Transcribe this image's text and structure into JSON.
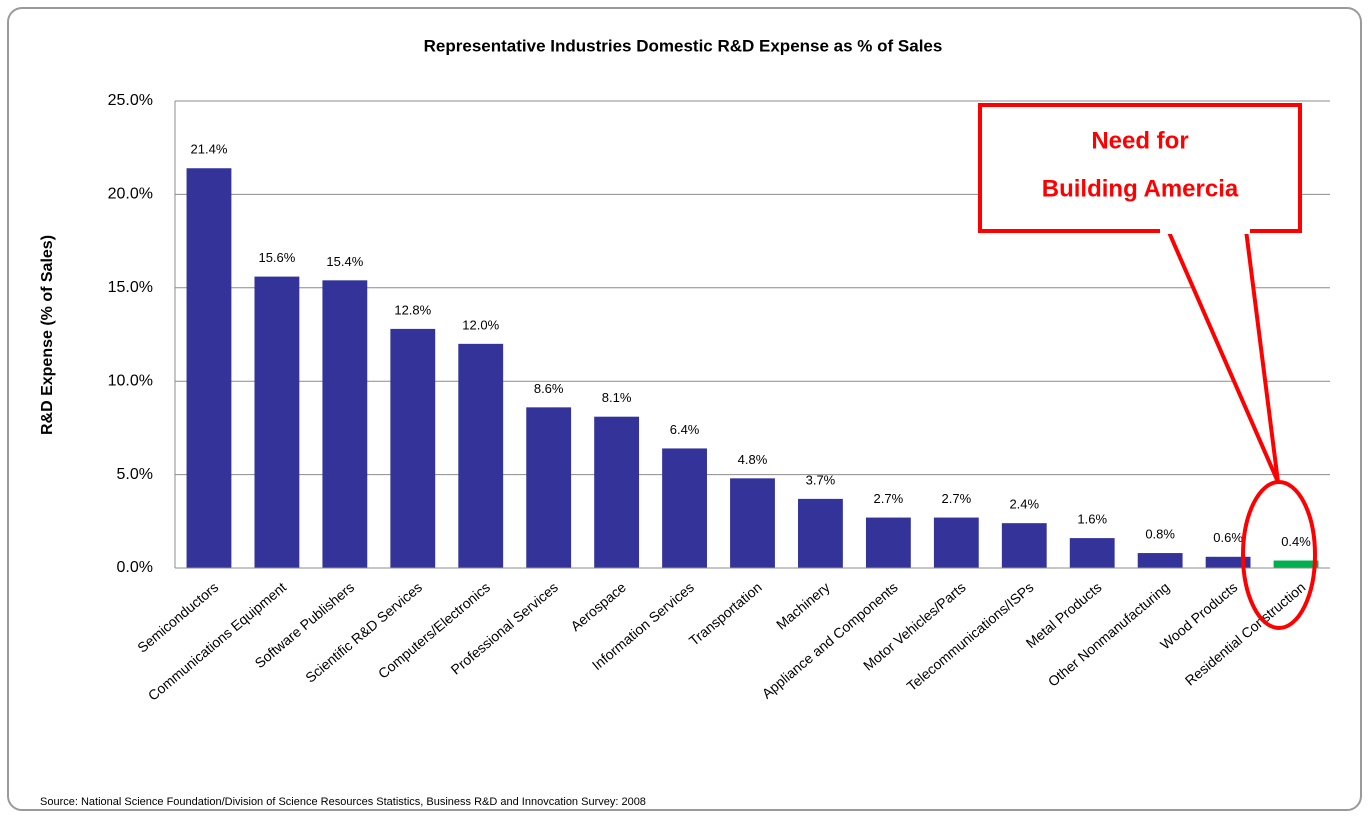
{
  "chart_data": {
    "type": "bar",
    "title": "Representative Industries Domestic R&D Expense as % of Sales",
    "y_label": "R&D Expense (% of Sales)",
    "source": "Source: National Science Foundation/Division of Science Resources Statistics, Business R&D and Innovcation Survey: 2008",
    "annotation": [
      "Need for",
      "Building Amercia"
    ],
    "categories": [
      "Semiconductors",
      "Communications Equipment",
      "Software Publishers",
      "Scientific R&D Services",
      "Computers/Electronics",
      "Professional Services",
      "Aerospace",
      "Information Services",
      "Transportation",
      "Machinery",
      "Appliance and Components",
      "Motor Vehicles/Parts",
      "Telecommunications/ISPs",
      "Metal Products",
      "Other Nonmanufacturing",
      "Wood Products",
      "Residential Construction"
    ],
    "values": [
      21.4,
      15.6,
      15.4,
      12.8,
      12.0,
      8.6,
      8.1,
      6.4,
      4.8,
      3.7,
      2.7,
      2.7,
      2.4,
      1.6,
      0.8,
      0.6,
      0.4
    ],
    "value_labels": [
      "21.4%",
      "15.6%",
      "15.4%",
      "12.8%",
      "12.0%",
      "8.6%",
      "8.1%",
      "6.4%",
      "4.8%",
      "3.7%",
      "2.7%",
      "2.7%",
      "2.4%",
      "1.6%",
      "0.8%",
      "0.6%",
      "0.4%"
    ],
    "colors": [
      "#333399",
      "#333399",
      "#333399",
      "#333399",
      "#333399",
      "#333399",
      "#333399",
      "#333399",
      "#333399",
      "#333399",
      "#333399",
      "#333399",
      "#333399",
      "#333399",
      "#333399",
      "#333399",
      "#00b050"
    ],
    "ylim": [
      0,
      25
    ],
    "yticks": [
      {
        "value": 0,
        "label": "0.0%"
      },
      {
        "value": 5,
        "label": "5.0%"
      },
      {
        "value": 10,
        "label": "10.0%"
      },
      {
        "value": 15,
        "label": "15.0%"
      },
      {
        "value": 20,
        "label": "20.0%"
      },
      {
        "value": 25,
        "label": "25.0%"
      }
    ],
    "grid": true
  }
}
